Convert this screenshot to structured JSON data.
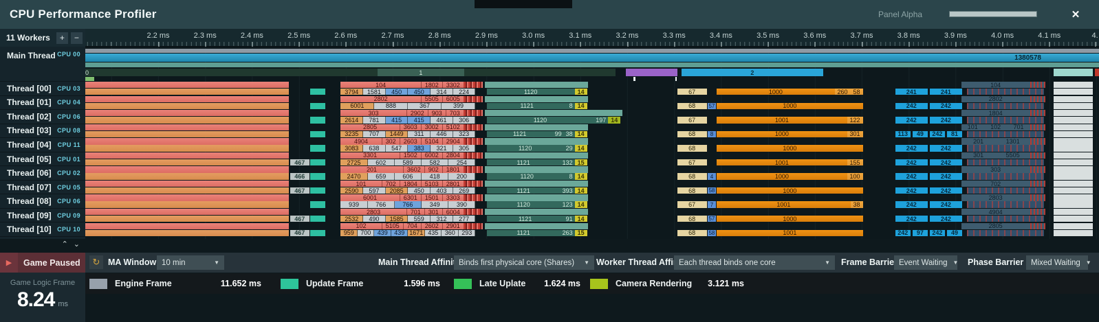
{
  "header": {
    "title": "CPU Performance Profiler",
    "panel_alpha_label": "Panel Alpha",
    "close_label": "✕"
  },
  "workers": {
    "label": "11 Workers",
    "zoom_in": "+",
    "zoom_out": "−"
  },
  "ruler": {
    "ticks": [
      "2.2 ms",
      "2.3 ms",
      "2.4 ms",
      "2.5 ms",
      "2.6 ms",
      "2.7 ms",
      "2.8 ms",
      "2.9 ms",
      "3.0 ms",
      "3.1 ms",
      "3.2 ms",
      "3.3 ms",
      "3.4 ms",
      "3.5 ms",
      "3.6 ms",
      "3.7 ms",
      "3.8 ms",
      "3.9 ms",
      "4.0 ms",
      "4.1 ms"
    ],
    "partial_tick": "4."
  },
  "sidebar": {
    "rows": [
      {
        "name": "Main Thread",
        "cpu": "CPU 00"
      },
      {
        "name": "Thread [00]",
        "cpu": "CPU 03"
      },
      {
        "name": "Thread [01]",
        "cpu": "CPU 04"
      },
      {
        "name": "Thread [02]",
        "cpu": "CPU 06"
      },
      {
        "name": "Thread [03]",
        "cpu": "CPU 08"
      },
      {
        "name": "Thread [04]",
        "cpu": "CPU 11"
      },
      {
        "name": "Thread [05]",
        "cpu": "CPU 01"
      },
      {
        "name": "Thread [06]",
        "cpu": "CPU 02"
      },
      {
        "name": "Thread [07]",
        "cpu": "CPU 05"
      },
      {
        "name": "Thread [08]",
        "cpu": "CPU 06"
      },
      {
        "name": "Thread [09]",
        "cpu": "CPU 09"
      },
      {
        "name": "Thread [10]",
        "cpu": "CPU 10"
      }
    ]
  },
  "main_thread": {
    "counter": "1380578",
    "seg1_label": "1",
    "seg2_label": "2",
    "zero_label": "0"
  },
  "threads": [
    {
      "top": [
        "104",
        "1802",
        "3302"
      ],
      "bot": [
        [
          "3794",
          "o"
        ],
        [
          "1581",
          "g"
        ],
        [
          "450",
          "b"
        ],
        [
          "450",
          "b"
        ],
        [
          "314",
          "g"
        ],
        [
          "224",
          "g"
        ]
      ],
      "pre": null,
      "mid": "1120",
      "mid_x": [],
      "tail": "14",
      "tail_wide": false,
      "tan": "67",
      "sliver": null,
      "big": "1000",
      "big_x": [
        "260",
        "58"
      ],
      "blues": [
        "241",
        "241"
      ],
      "nav": [
        "104"
      ]
    },
    {
      "top": [
        "2802",
        "5505",
        "6005"
      ],
      "bot": [
        [
          "6001",
          "o"
        ],
        [
          "888",
          "g"
        ],
        [
          "367",
          "g"
        ],
        [
          "399",
          "g"
        ]
      ],
      "pre": null,
      "mid": "1121",
      "mid_x": [
        "8"
      ],
      "tail": "14",
      "tail_wide": false,
      "tan": "68",
      "sliver": "57",
      "big": "1000",
      "big_x": [],
      "blues": [
        "242",
        "242"
      ],
      "nav": [
        "2802"
      ]
    },
    {
      "top": [
        "303",
        "2902",
        "903",
        "703"
      ],
      "bot": [
        [
          "2614",
          "o"
        ],
        [
          "781",
          "g"
        ],
        [
          "415",
          "b"
        ],
        [
          "415",
          "b"
        ],
        [
          "461",
          "g"
        ],
        [
          "306",
          "g"
        ]
      ],
      "pre": null,
      "mid": "1120",
      "mid_x": [
        "197"
      ],
      "tail": "14",
      "tail_wide": true,
      "tan": "67",
      "sliver": null,
      "big": "1001",
      "big_x": [
        "122"
      ],
      "blues": [
        "242",
        "242"
      ],
      "nav": [
        "1804"
      ]
    },
    {
      "top": [
        "2805",
        "3603",
        "3002",
        "5102"
      ],
      "bot": [
        [
          "3235",
          "o"
        ],
        [
          "707",
          "g"
        ],
        [
          "1449",
          "o"
        ],
        [
          "311",
          "g"
        ],
        [
          "446",
          "g"
        ],
        [
          "323",
          "g"
        ]
      ],
      "pre": null,
      "mid": "1121",
      "mid_x": [
        "99",
        "38"
      ],
      "tail": "14",
      "tail_wide": false,
      "tan": "68",
      "sliver": "8",
      "big": "1000",
      "big_x": [
        "301"
      ],
      "blues": [
        "113",
        "49",
        "242",
        "81"
      ],
      "nav": [
        "101",
        "102",
        "701"
      ]
    },
    {
      "top": [
        "4904",
        "302",
        "2603",
        "5104",
        "2904"
      ],
      "bot": [
        [
          "3083",
          "o"
        ],
        [
          "638",
          "g"
        ],
        [
          "547",
          "g"
        ],
        [
          "383",
          "b"
        ],
        [
          "321",
          "g"
        ],
        [
          "305",
          "g"
        ]
      ],
      "pre": null,
      "mid": "1120",
      "mid_x": [
        "29"
      ],
      "tail": "14",
      "tail_wide": false,
      "tan": "68",
      "sliver": null,
      "big": "1000",
      "big_x": [],
      "blues": [
        "242",
        "242"
      ],
      "nav": [
        "201",
        "1301"
      ]
    },
    {
      "top": [
        "3301",
        "1502",
        "6002",
        "2804"
      ],
      "bot": [
        [
          "2725",
          "o"
        ],
        [
          "602",
          "g"
        ],
        [
          "589",
          "g"
        ],
        [
          "582",
          "g"
        ],
        [
          "254",
          "g"
        ]
      ],
      "pre": "467",
      "mid": "1121",
      "mid_x": [
        "132"
      ],
      "tail": "15",
      "tail_wide": false,
      "tan": "67",
      "sliver": null,
      "big": "1001",
      "big_x": [
        "155"
      ],
      "blues": [
        "242",
        "242"
      ],
      "nav": [
        "301",
        "5505"
      ]
    },
    {
      "top": [
        "201",
        "3602",
        "902",
        "1801"
      ],
      "bot": [
        [
          "2470",
          "o"
        ],
        [
          "659",
          "g"
        ],
        [
          "606",
          "g"
        ],
        [
          "418",
          "g"
        ],
        [
          "200",
          "g"
        ]
      ],
      "pre": "466",
      "mid": "1120",
      "mid_x": [
        "8"
      ],
      "tail": "14",
      "tail_wide": false,
      "tan": "68",
      "sliver": "4",
      "big": "1000",
      "big_x": [
        "100"
      ],
      "blues": [
        "242",
        "242"
      ],
      "nav": [
        "303"
      ]
    },
    {
      "top": [
        "101",
        "702",
        "1804",
        "5103",
        "2801"
      ],
      "bot": [
        [
          "2590",
          "o"
        ],
        [
          "597",
          "g"
        ],
        [
          "2085",
          "o"
        ],
        [
          "450",
          "g"
        ],
        [
          "403",
          "g"
        ],
        [
          "269",
          "g"
        ]
      ],
      "pre": "467",
      "mid": "1121",
      "mid_x": [
        "393"
      ],
      "tail": "14",
      "tail_wide": false,
      "tan": "68",
      "sliver": "58",
      "big": "1000",
      "big_x": [],
      "blues": [
        "242",
        "242"
      ],
      "nav": [
        "702"
      ]
    },
    {
      "top": [
        "6001",
        "6301",
        "1501",
        "3303"
      ],
      "bot": [
        [
          "939",
          "g"
        ],
        [
          "766",
          "g"
        ],
        [
          "766",
          "b"
        ],
        [
          "349",
          "g"
        ],
        [
          "390",
          "g"
        ]
      ],
      "pre": null,
      "mid": "1120",
      "mid_x": [
        "123"
      ],
      "tail": "14",
      "tail_wide": false,
      "tan": "67",
      "sliver": "7",
      "big": "1001",
      "big_x": [
        "38"
      ],
      "blues": [
        "242",
        "242"
      ],
      "nav": [
        "2803"
      ]
    },
    {
      "top": [
        "2803",
        "701",
        "301",
        "6004"
      ],
      "bot": [
        [
          "2532",
          "o"
        ],
        [
          "490",
          "g"
        ],
        [
          "1585",
          "o"
        ],
        [
          "559",
          "g"
        ],
        [
          "312",
          "g"
        ],
        [
          "277",
          "g"
        ]
      ],
      "pre": "467",
      "mid": "1121",
      "mid_x": [
        "91"
      ],
      "tail": "14",
      "tail_wide": false,
      "tan": "68",
      "sliver": "57",
      "big": "1000",
      "big_x": [],
      "blues": [
        "242",
        "242"
      ],
      "nav": [
        "4904"
      ]
    },
    {
      "top": [
        "102",
        "5105",
        "704",
        "2602",
        "2901"
      ],
      "bot": [
        [
          "959",
          "o"
        ],
        [
          "700",
          "g"
        ],
        [
          "439",
          "b"
        ],
        [
          "439",
          "b"
        ],
        [
          "1671",
          "o"
        ],
        [
          "435",
          "g"
        ],
        [
          "360",
          "g"
        ],
        [
          "293",
          "g"
        ]
      ],
      "pre": "467",
      "mid": "1121",
      "mid_x": [
        "263"
      ],
      "tail": "15",
      "tail_wide": false,
      "tan": "68",
      "sliver": "58",
      "big": "1001",
      "big_x": [],
      "blues": [
        "242",
        "97",
        "242",
        "49"
      ],
      "nav": [
        "2805"
      ]
    }
  ],
  "controls": {
    "ma_window": {
      "label": "MA Window",
      "value": "10 min"
    },
    "main_affinity": {
      "label": "Main Thread Affinity",
      "value": "Binds first physical core (Shares)"
    },
    "worker_affinity": {
      "label": "Worker Thread Affinity",
      "value": "Each thread binds one core"
    },
    "frame_barrier": {
      "label": "Frame Barrier",
      "value": "Event Waiting"
    },
    "phase_barrier": {
      "label": "Phase Barrier",
      "value": "Mixed Waiting"
    },
    "refresh_icon": "↻",
    "caret": "▼"
  },
  "legend": {
    "items": [
      {
        "label": "Engine Frame",
        "value": "11.652 ms",
        "color": "#97a1ab"
      },
      {
        "label": "Update Frame",
        "value": "1.596 ms",
        "color": "#2ec49a"
      },
      {
        "label": "Late Uplate",
        "value": "1.624 ms",
        "color": "#35c158"
      },
      {
        "label": "Camera Rendering",
        "value": "3.121 ms",
        "color": "#a7c41c"
      }
    ]
  },
  "game": {
    "paused_label": "Game Paused",
    "play_icon": "▶",
    "frame_label": "Game Logic Frame",
    "frame_value": "8.24",
    "frame_unit": "ms"
  }
}
